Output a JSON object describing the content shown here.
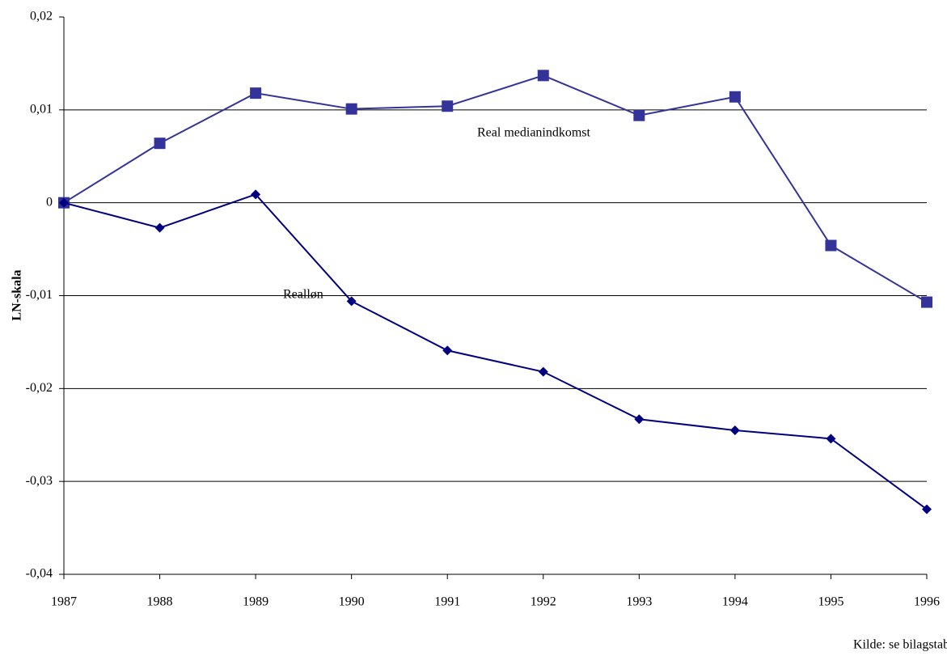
{
  "chart_data": {
    "type": "line",
    "y_label": "LN-skala",
    "source": "Kilde: se bilagstabeller",
    "x": [
      1987,
      1988,
      1989,
      1990,
      1991,
      1992,
      1993,
      1994,
      1995,
      1996
    ],
    "xlim": [
      1987,
      1996
    ],
    "xticks": [
      1987,
      1988,
      1989,
      1990,
      1991,
      1992,
      1993,
      1994,
      1995,
      1996
    ],
    "ylim": [
      -0.04,
      0.02
    ],
    "yticks": [
      {
        "value": -0.04,
        "label": "-0,04"
      },
      {
        "value": -0.03,
        "label": "-0,03"
      },
      {
        "value": -0.02,
        "label": "-0,02"
      },
      {
        "value": -0.01,
        "label": "-0,01"
      },
      0,
      {
        "value": 0.01,
        "label": "0,01"
      },
      {
        "value": 0.02,
        "label": "0,02"
      }
    ],
    "grid": true,
    "series": [
      {
        "name": "Real medianindkomst",
        "color": "#333399",
        "marker": "square",
        "values": [
          0,
          0.0064,
          0.0118,
          0.0101,
          0.0104,
          0.0137,
          0.0094,
          0.0114,
          -0.0046,
          -0.0107
        ]
      },
      {
        "name": "Realløn",
        "color": "#000080",
        "marker": "diamond",
        "values": [
          0,
          -0.0027,
          0.0009,
          -0.0106,
          -0.0159,
          -0.0182,
          -0.0233,
          -0.0245,
          -0.0254,
          -0.033
        ]
      }
    ]
  }
}
